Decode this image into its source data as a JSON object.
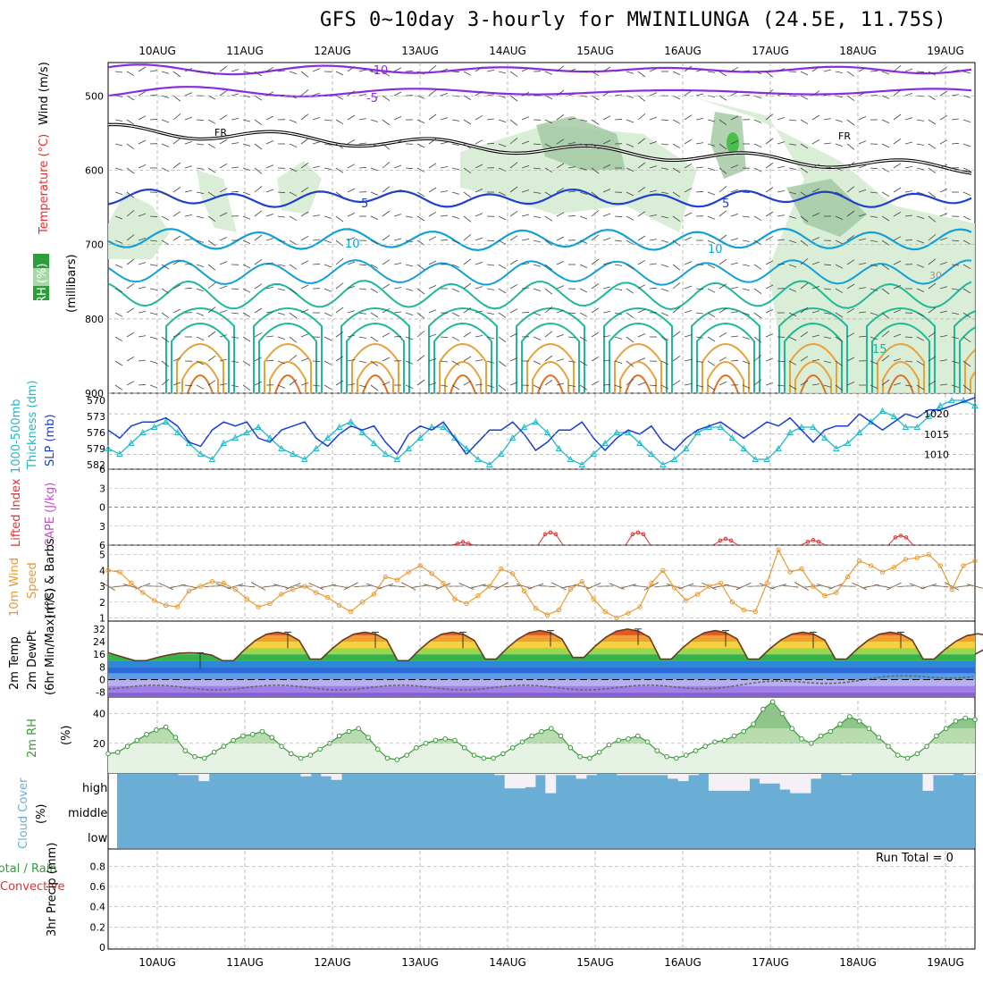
{
  "title": "GFS 0~10day 3-hourly for MWINILUNGA (24.5E, 11.75S)",
  "dates": [
    "10AUG",
    "11AUG",
    "12AUG",
    "13AUG",
    "14AUG",
    "15AUG",
    "16AUG",
    "17AUG",
    "18AUG",
    "19AUG"
  ],
  "colors": {
    "rh_green": "#2e9e3a",
    "temp_purple": "#8a2be2",
    "temp_blue": "#1e3fd0",
    "temp_cyan": "#12a0d8",
    "temp_teal": "#1fb89a",
    "temp_orange": "#e8a23a",
    "slp": "#1a3fd0",
    "thickness": "#20b8c8",
    "lifted": "#e03030",
    "cape": "#c050c0",
    "wind10m": "#e89a30",
    "barbs": "#7a5a3a",
    "rh2m": "#3a9a3a",
    "cloud": "#6aaed6",
    "cloud_clear": "#f4f0f6",
    "precip_total": "#2e9e3a",
    "precip_conv": "#e03030"
  },
  "panel_labels": {
    "upper": {
      "rh": "RH (%)",
      "temp": "Temperature (°C)",
      "wind": "Wind (m/s)",
      "pressure": "(millibars)"
    },
    "slp": {
      "thick1": "1000-500mb",
      "thick2": "Thickness (dm)",
      "slp": "SLP (mb)"
    },
    "li": {
      "li": "Lifted Index",
      "cape": "CAPE (J/kg)"
    },
    "wind": {
      "l1": "10m Wind",
      "l2": "Speed",
      "l3": "(m/s) & Barbs"
    },
    "temp2m": {
      "l1": "2m Temp",
      "l2": "2m DewPt",
      "l3": "(6hr Min/Max) (°C)"
    },
    "rh2m": {
      "l1": "2m RH",
      "l2": "(%)"
    },
    "cloud": {
      "l1": "Cloud Cover",
      "l2": "(%)"
    },
    "precip": {
      "l1": "Total / Rain",
      "l2": "Convective",
      "l3": "3hr Precip (mm)"
    }
  },
  "upper_contour_labels": {
    "minus10": "-10",
    "minus5": "-5",
    "fr": "FR",
    "five": "5",
    "ten": "10",
    "fifteen": "15",
    "rh30": "30"
  },
  "run_total": "Run Total = 0",
  "chart_data": [
    {
      "type": "contour",
      "name": "upper_air",
      "ylabel": "(millibars)",
      "y_ticks": [
        500,
        600,
        700,
        800,
        900
      ],
      "ylim": [
        900,
        455
      ],
      "isotherm_levels": {
        "-10": 470,
        "-5": 498,
        "FR": 545,
        "5": 620,
        "10": 680,
        "15": 760
      },
      "rh_shading_note": "RH 30-90% shaded green"
    },
    {
      "type": "line",
      "name": "slp_thickness",
      "ylabel_left": "Thickness (dm)",
      "ylabel_right": "SLP (mb)",
      "left_ticks": [
        570,
        573,
        576,
        579,
        582
      ],
      "right_ticks": [
        1010,
        1015,
        1020
      ],
      "series": [
        {
          "name": "SLP (mb)",
          "values": [
            1016,
            1014,
            1017,
            1018,
            1018,
            1019,
            1017,
            1013,
            1012,
            1016,
            1018,
            1017,
            1018,
            1014,
            1013,
            1016,
            1017,
            1018,
            1014,
            1012,
            1015,
            1017,
            1016,
            1017,
            1013,
            1010,
            1015,
            1017,
            1016,
            1018,
            1014,
            1010,
            1013,
            1016,
            1016,
            1018,
            1015,
            1011,
            1013,
            1016,
            1016,
            1018,
            1014,
            1011,
            1014,
            1016,
            1015,
            1017,
            1013,
            1011,
            1014,
            1016,
            1017,
            1018,
            1016,
            1014,
            1016,
            1018,
            1017,
            1019,
            1016,
            1013,
            1016,
            1017,
            1017,
            1020,
            1018,
            1016,
            1018,
            1020,
            1019,
            1021,
            1021,
            1022,
            1023,
            1024
          ]
        },
        {
          "name": "Thickness (dm)",
          "values": [
            579,
            580,
            578,
            576,
            575,
            574,
            576,
            578,
            580,
            581,
            578,
            577,
            576,
            575,
            577,
            579,
            580,
            581,
            579,
            577,
            575,
            574,
            576,
            578,
            580,
            581,
            579,
            577,
            575,
            575,
            577,
            579,
            581,
            582,
            580,
            577,
            575,
            574,
            576,
            579,
            581,
            582,
            580,
            578,
            576,
            576,
            578,
            580,
            582,
            581,
            579,
            576,
            575,
            575,
            577,
            579,
            581,
            581,
            579,
            576,
            575,
            575,
            577,
            579,
            578,
            576,
            574,
            572,
            573,
            575,
            575,
            573,
            571,
            570,
            570,
            571
          ]
        }
      ]
    },
    {
      "type": "line",
      "name": "lifted_index_cape",
      "ylabel": "Lifted Index / CAPE (J/kg)",
      "y_ticks": [
        -6,
        -3,
        0,
        3,
        6
      ],
      "ylim": [
        -6,
        6
      ],
      "peaks": [
        {
          "x": "13AUG",
          "li": 5.5
        },
        {
          "x": "14AUG",
          "li": 4
        },
        {
          "x": "15AUG",
          "li": 4
        },
        {
          "x": "16AUG",
          "li": 5
        },
        {
          "x": "17AUG",
          "li": 5.2
        },
        {
          "x": "18AUG",
          "li": 4.5
        }
      ]
    },
    {
      "type": "line",
      "name": "wind10m",
      "ylabel": "10m Wind Speed (m/s) & Barbs",
      "y_ticks": [
        1,
        2,
        3,
        4,
        5
      ],
      "ylim": [
        0.8,
        5.6
      ],
      "values": [
        4.0,
        3.9,
        3.2,
        2.6,
        2.1,
        1.8,
        1.7,
        2.7,
        3.0,
        3.3,
        3.2,
        2.8,
        2.2,
        1.7,
        1.9,
        2.5,
        2.8,
        3.0,
        2.6,
        2.3,
        1.8,
        1.4,
        2.0,
        2.5,
        3.6,
        3.4,
        3.9,
        4.3,
        3.8,
        3.2,
        2.2,
        1.9,
        2.4,
        3.0,
        4.1,
        3.8,
        2.7,
        1.6,
        1.2,
        1.5,
        2.8,
        3.3,
        2.2,
        1.4,
        1.0,
        1.3,
        1.7,
        3.2,
        4.0,
        2.9,
        2.1,
        2.5,
        3.0,
        3.2,
        2.0,
        1.5,
        1.4,
        3.2,
        5.3,
        3.9,
        4.1,
        3.0,
        2.4,
        2.6,
        3.6,
        4.6,
        4.3,
        3.9,
        4.2,
        4.7,
        4.8,
        5.0,
        4.3,
        2.8,
        4.3,
        4.6
      ]
    },
    {
      "type": "area",
      "name": "temp2m",
      "ylabel": "2m Temp / 2m DewPt (°C)",
      "y_ticks": [
        -8,
        0,
        8,
        16,
        24,
        32
      ],
      "ylim": [
        -11,
        37
      ],
      "temp_max_per_day": [
        17,
        30,
        30,
        30,
        31,
        32,
        31,
        30,
        30,
        29
      ],
      "temp_min_per_day": [
        12,
        12,
        13,
        12,
        13,
        14,
        13,
        13,
        13,
        13
      ],
      "dewpoint_range": [
        -6,
        4
      ]
    },
    {
      "type": "area",
      "name": "rh2m",
      "ylabel": "2m RH (%)",
      "y_ticks": [
        20,
        40
      ],
      "ylim": [
        0,
        50
      ],
      "values": [
        13,
        14,
        18,
        22,
        26,
        29,
        31,
        24,
        15,
        11,
        10,
        14,
        18,
        22,
        25,
        26,
        28,
        24,
        18,
        13,
        10,
        12,
        16,
        20,
        25,
        28,
        30,
        24,
        16,
        10,
        9,
        12,
        17,
        20,
        22,
        23,
        22,
        17,
        12,
        10,
        10,
        13,
        17,
        21,
        25,
        28,
        30,
        25,
        17,
        11,
        10,
        14,
        19,
        22,
        23,
        25,
        21,
        15,
        11,
        10,
        12,
        15,
        18,
        21,
        22,
        25,
        28,
        33,
        43,
        48,
        40,
        30,
        23,
        20,
        25,
        28,
        33,
        38,
        35,
        30,
        24,
        18,
        12,
        10,
        13,
        18,
        25,
        30,
        35,
        37,
        36
      ]
    },
    {
      "type": "bar",
      "name": "cloud_cover",
      "categories": [
        "high",
        "middle",
        "low"
      ],
      "note": "high cloud fractions (0-1) per 3hr step",
      "high_values": [
        0,
        0,
        0,
        0,
        0,
        0,
        0.05,
        0.05,
        0.3,
        0,
        0,
        0,
        0,
        0,
        0,
        0,
        0,
        0,
        0.1,
        0,
        0.1,
        0.25,
        0,
        0,
        0,
        0,
        0,
        0,
        0,
        0,
        0,
        0,
        0,
        0,
        0,
        0,
        0,
        0.05,
        0.6,
        0.6,
        0.55,
        0.05,
        0.8,
        0.05,
        0.05,
        0.2,
        0.05,
        0,
        0,
        0.05,
        0.05,
        0.05,
        0.05,
        0.05,
        0.2,
        0.3,
        0.05,
        0,
        0.7,
        0.7,
        0.7,
        0.7,
        0.2,
        0.4,
        0.4,
        0.65,
        0.8,
        0.8,
        0.2,
        0,
        0,
        0.05,
        0,
        0,
        0,
        0,
        0,
        0,
        0,
        0.7,
        0.05,
        0.05,
        0,
        0.05,
        0.05
      ]
    },
    {
      "type": "bar",
      "name": "precip3hr",
      "ylabel": "3hr Precip (mm)",
      "y_ticks": [
        0,
        0.2,
        0.4,
        0.6,
        0.8
      ],
      "ylim": [
        0,
        0.9
      ],
      "values": []
    }
  ]
}
